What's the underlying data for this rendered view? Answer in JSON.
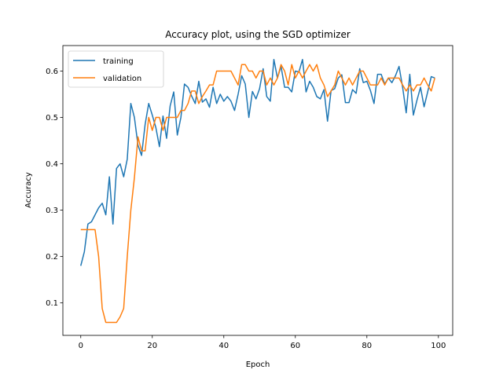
{
  "chart_data": {
    "type": "line",
    "title": "Accuracy plot, using the SGD optimizer",
    "xlabel": "Epoch",
    "ylabel": "Accuracy",
    "xlim": [
      -5,
      104
    ],
    "ylim": [
      0.03,
      0.655
    ],
    "xticks": [
      0,
      20,
      40,
      60,
      80,
      100
    ],
    "yticks": [
      0.1,
      0.2,
      0.3,
      0.4,
      0.5,
      0.6
    ],
    "grid": false,
    "legend_position": "top-left",
    "series": [
      {
        "name": "training",
        "color": "#1f77b4",
        "x": [
          0,
          1,
          2,
          3,
          4,
          5,
          6,
          7,
          8,
          9,
          10,
          11,
          12,
          13,
          14,
          15,
          16,
          17,
          18,
          19,
          20,
          21,
          22,
          23,
          24,
          25,
          26,
          27,
          28,
          29,
          30,
          31,
          32,
          33,
          34,
          35,
          36,
          37,
          38,
          39,
          40,
          41,
          42,
          43,
          44,
          45,
          46,
          47,
          48,
          49,
          50,
          51,
          52,
          53,
          54,
          55,
          56,
          57,
          58,
          59,
          60,
          61,
          62,
          63,
          64,
          65,
          66,
          67,
          68,
          69,
          70,
          71,
          72,
          73,
          74,
          75,
          76,
          77,
          78,
          79,
          80,
          81,
          82,
          83,
          84,
          85,
          86,
          87,
          88,
          89,
          90,
          91,
          92,
          93,
          94,
          95,
          96,
          97,
          98,
          99
        ],
        "values": [
          0.18,
          0.21,
          0.27,
          0.275,
          0.29,
          0.305,
          0.315,
          0.29,
          0.372,
          0.27,
          0.39,
          0.4,
          0.372,
          0.41,
          0.53,
          0.5,
          0.44,
          0.418,
          0.485,
          0.53,
          0.505,
          0.478,
          0.437,
          0.503,
          0.455,
          0.525,
          0.555,
          0.462,
          0.5,
          0.572,
          0.565,
          0.546,
          0.53,
          0.578,
          0.533,
          0.54,
          0.522,
          0.565,
          0.53,
          0.55,
          0.535,
          0.545,
          0.535,
          0.515,
          0.55,
          0.59,
          0.572,
          0.5,
          0.556,
          0.54,
          0.562,
          0.605,
          0.545,
          0.535,
          0.625,
          0.585,
          0.61,
          0.565,
          0.565,
          0.555,
          0.6,
          0.598,
          0.625,
          0.555,
          0.578,
          0.565,
          0.545,
          0.54,
          0.56,
          0.492,
          0.558,
          0.562,
          0.585,
          0.592,
          0.532,
          0.532,
          0.56,
          0.552,
          0.605,
          0.575,
          0.578,
          0.558,
          0.53,
          0.593,
          0.593,
          0.572,
          0.585,
          0.575,
          0.59,
          0.61,
          0.565,
          0.51,
          0.593,
          0.505,
          0.537,
          0.565,
          0.523,
          0.555,
          0.588,
          0.585
        ]
      },
      {
        "name": "validation",
        "color": "#ff7f0e",
        "x": [
          0,
          1,
          2,
          3,
          4,
          5,
          6,
          7,
          8,
          9,
          10,
          11,
          12,
          13,
          14,
          15,
          16,
          17,
          18,
          19,
          20,
          21,
          22,
          23,
          24,
          25,
          26,
          27,
          28,
          29,
          30,
          31,
          32,
          33,
          34,
          35,
          36,
          37,
          38,
          39,
          40,
          41,
          42,
          43,
          44,
          45,
          46,
          47,
          48,
          49,
          50,
          51,
          52,
          53,
          54,
          55,
          56,
          57,
          58,
          59,
          60,
          61,
          62,
          63,
          64,
          65,
          66,
          67,
          68,
          69,
          70,
          71,
          72,
          73,
          74,
          75,
          76,
          77,
          78,
          79,
          80,
          81,
          82,
          83,
          84,
          85,
          86,
          87,
          88,
          89,
          90,
          91,
          92,
          93,
          94,
          95,
          96,
          97,
          98,
          99
        ],
        "values": [
          0.258,
          0.258,
          0.258,
          0.258,
          0.258,
          0.2,
          0.088,
          0.058,
          0.058,
          0.058,
          0.058,
          0.07,
          0.088,
          0.2,
          0.3,
          0.37,
          0.458,
          0.428,
          0.428,
          0.5,
          0.472,
          0.5,
          0.5,
          0.472,
          0.5,
          0.5,
          0.5,
          0.5,
          0.515,
          0.515,
          0.53,
          0.557,
          0.557,
          0.53,
          0.545,
          0.557,
          0.57,
          0.57,
          0.6,
          0.6,
          0.6,
          0.6,
          0.6,
          0.585,
          0.57,
          0.614,
          0.614,
          0.6,
          0.6,
          0.585,
          0.6,
          0.6,
          0.57,
          0.585,
          0.57,
          0.585,
          0.614,
          0.6,
          0.57,
          0.614,
          0.585,
          0.6,
          0.585,
          0.6,
          0.614,
          0.6,
          0.614,
          0.585,
          0.57,
          0.545,
          0.557,
          0.57,
          0.6,
          0.585,
          0.57,
          0.585,
          0.57,
          0.585,
          0.6,
          0.6,
          0.585,
          0.57,
          0.57,
          0.57,
          0.585,
          0.57,
          0.585,
          0.585,
          0.585,
          0.585,
          0.57,
          0.557,
          0.57,
          0.557,
          0.57,
          0.57,
          0.585,
          0.57,
          0.557,
          0.585
        ]
      }
    ]
  }
}
